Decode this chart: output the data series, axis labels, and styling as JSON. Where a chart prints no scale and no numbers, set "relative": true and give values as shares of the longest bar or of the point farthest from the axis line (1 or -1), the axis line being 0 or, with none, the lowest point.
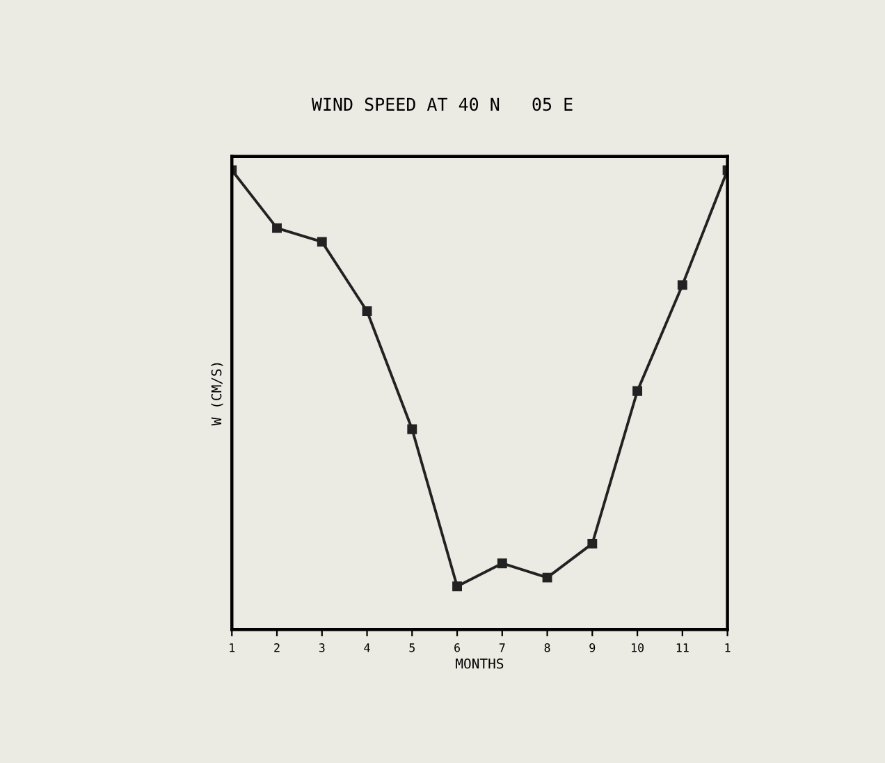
{
  "chart_data": {
    "type": "line",
    "title": "WIND SPEED AT 40 N   05 E",
    "xlabel": "MONTHS",
    "ylabel": "W (CM/S)",
    "relative": true,
    "categories": [
      "1",
      "2",
      "3",
      "4",
      "5",
      "6",
      "7",
      "8",
      "9",
      "10",
      "11",
      "1"
    ],
    "series": [
      {
        "color": "#222222",
        "values": [
          1,
          0.874,
          0.844,
          0.693,
          0.436,
          0.094,
          0.144,
          0.113,
          0.187,
          0.519,
          0.75,
          1
        ]
      }
    ],
    "marker": "square",
    "line_style": "solid",
    "grid": false,
    "legend": false
  }
}
